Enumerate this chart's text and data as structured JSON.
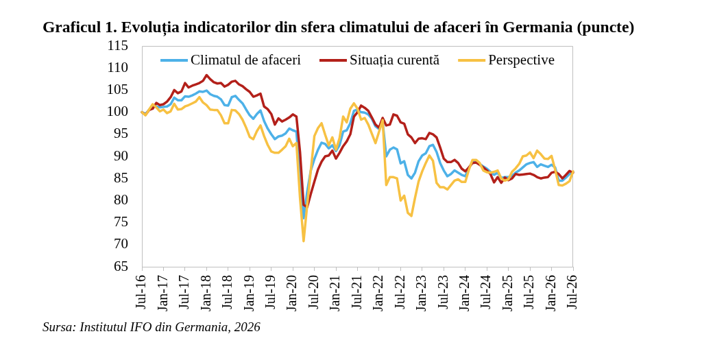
{
  "chart_data": {
    "type": "line",
    "title": "Graficul 1. Evoluția indicatorilor din sfera climatului de afaceri în Germania (puncte)",
    "annotations": [
      "Sursa: Institutul IFO din Germania, 2026"
    ],
    "categories": [
      "Jul-16",
      null,
      null,
      null,
      null,
      null,
      "Jan-17",
      null,
      null,
      null,
      null,
      null,
      "Jul-17",
      null,
      null,
      null,
      null,
      null,
      "Jan-18",
      null,
      null,
      null,
      null,
      null,
      "Jul-18",
      null,
      null,
      null,
      null,
      null,
      "Jan-19",
      null,
      null,
      null,
      null,
      null,
      "Jul-19",
      null,
      null,
      null,
      null,
      null,
      "Jan-20",
      null,
      null,
      null,
      null,
      null,
      "Jul-20",
      null,
      null,
      null,
      null,
      null,
      "Jan-21",
      null,
      null,
      null,
      null,
      null,
      "Jul-21",
      null,
      null,
      null,
      null,
      null,
      "Jan-22",
      null,
      null,
      null,
      null,
      null,
      "Jul-22",
      null,
      null,
      null,
      null,
      null,
      "Jan-23",
      null,
      null,
      null,
      null,
      null,
      "Jul-23",
      null,
      null,
      null,
      null,
      null,
      "Jan-24",
      null,
      null,
      null,
      null,
      null,
      "Jul-24",
      null,
      null,
      null,
      null,
      null,
      "Jan-25",
      null,
      null,
      null,
      null,
      null,
      "Jul-25",
      null,
      null,
      null,
      null,
      null,
      "Jan-26",
      null,
      null,
      null,
      null,
      null,
      "Jul-26"
    ],
    "series": [
      {
        "name": "Climatul de afaceri",
        "color": "#4db1e8",
        "values": [
          100,
          99.6,
          100.5,
          101.2,
          101.3,
          101.1,
          101.2,
          101.3,
          101.8,
          103.3,
          102.7,
          102.7,
          103.6,
          103.5,
          103.8,
          104.2,
          104.7,
          104.6,
          104.9,
          104.1,
          103.7,
          103.5,
          102.9,
          101.6,
          101.5,
          103.4,
          103.7,
          102.8,
          102.0,
          100.6,
          99.3,
          98.5,
          99.6,
          100.4,
          98.0,
          96.3,
          95.0,
          93.9,
          94.5,
          94.7,
          95.2,
          96.3,
          95.9,
          95.6,
          85.0,
          76.0,
          82.0,
          86.8,
          89.4,
          91.5,
          93.1,
          92.8,
          91.8,
          92.5,
          91.2,
          92.5,
          95.6,
          95.9,
          97.5,
          100.3,
          100.6,
          100.0,
          99.9,
          99.5,
          98.5,
          96.8,
          96.2,
          97.7,
          90.0,
          91.5,
          92.0,
          91.6,
          88.4,
          88.9,
          85.8,
          85.0,
          86.3,
          88.9,
          90.2,
          90.7,
          92.3,
          92.6,
          91.0,
          88.5,
          86.8,
          85.5,
          86.0,
          86.8,
          86.3,
          85.8,
          85.5,
          87.4,
          88.7,
          88.9,
          88.3,
          87.7,
          87.2,
          86.5,
          85.8,
          86.3,
          85.1,
          85.3,
          85.3,
          85.6,
          86.3,
          86.8,
          87.5,
          88.2,
          88.5,
          88.7,
          87.6,
          88.2,
          87.9,
          87.6,
          88.1,
          87.5,
          84.5,
          84.5,
          85.2,
          86.0,
          86.5
        ]
      },
      {
        "name": "Situația curentă",
        "color": "#b3201a",
        "values": [
          100,
          99.4,
          100.5,
          100.8,
          102.1,
          101.6,
          101.8,
          102.4,
          103.4,
          105.0,
          104.3,
          104.7,
          106.6,
          105.6,
          106.0,
          106.3,
          106.6,
          107.1,
          108.4,
          107.5,
          106.8,
          106.5,
          106.6,
          105.8,
          106.2,
          106.9,
          107.1,
          106.3,
          105.9,
          105.2,
          104.6,
          103.5,
          103.8,
          104.2,
          101.3,
          100.7,
          99.6,
          97.2,
          98.6,
          97.9,
          98.3,
          98.8,
          99.5,
          99.0,
          91.0,
          79.0,
          78.5,
          81.5,
          84.3,
          87.0,
          88.8,
          90.0,
          90.2,
          91.3,
          89.5,
          90.8,
          92.3,
          93.4,
          95.0,
          99.0,
          100.0,
          101.5,
          101.0,
          100.3,
          98.8,
          97.2,
          96.5,
          98.7,
          97.0,
          97.2,
          99.5,
          99.2,
          97.7,
          97.4,
          95.0,
          94.3,
          93.0,
          94.0,
          94.1,
          93.9,
          95.3,
          95.0,
          94.3,
          92.0,
          89.5,
          88.7,
          88.7,
          89.2,
          88.5,
          87.2,
          86.6,
          87.5,
          88.5,
          88.6,
          88.1,
          87.5,
          86.8,
          86.0,
          84.1,
          85.3,
          84.0,
          85.2,
          84.6,
          85.0,
          86.0,
          85.8,
          85.9,
          86.0,
          86.1,
          85.8,
          85.3,
          85.0,
          85.2,
          85.3,
          86.3,
          86.5,
          86.0,
          85.0,
          85.8,
          86.7,
          86.3
        ]
      },
      {
        "name": "Perspective",
        "color": "#f7c143",
        "values": [
          100,
          99.3,
          100.6,
          101.8,
          101.1,
          100.2,
          100.6,
          99.8,
          100.2,
          101.9,
          100.6,
          100.7,
          101.3,
          101.6,
          102.0,
          102.4,
          103.4,
          102.2,
          101.6,
          100.6,
          100.5,
          100.5,
          99.3,
          97.5,
          97.5,
          100.5,
          100.4,
          99.6,
          98.3,
          96.5,
          94.4,
          93.9,
          95.7,
          97.0,
          94.6,
          92.6,
          91.1,
          90.8,
          90.8,
          91.5,
          92.3,
          94.0,
          92.3,
          93.0,
          80.6,
          70.8,
          79.0,
          86.8,
          94.6,
          96.4,
          97.5,
          94.9,
          92.5,
          94.3,
          91.5,
          94.1,
          99.0,
          97.7,
          100.8,
          102.0,
          100.8,
          98.3,
          98.7,
          97.2,
          95.1,
          93.0,
          95.6,
          98.2,
          83.5,
          85.3,
          85.3,
          85.0,
          80.0,
          81.1,
          77.2,
          76.5,
          80.6,
          84.3,
          86.6,
          88.5,
          90.2,
          89.0,
          84.0,
          83.0,
          83.0,
          82.5,
          83.5,
          84.5,
          84.8,
          84.2,
          84.2,
          87.0,
          89.2,
          89.2,
          88.5,
          86.8,
          86.4,
          86.3,
          86.5,
          86.8,
          85.0,
          84.5,
          84.8,
          86.5,
          87.3,
          88.3,
          90.0,
          90.2,
          90.9,
          89.6,
          91.3,
          90.5,
          89.5,
          89.4,
          90.1,
          87.0,
          83.5,
          83.4,
          83.8,
          84.4,
          86.6
        ]
      }
    ],
    "ylim": [
      65,
      115
    ],
    "yticks": [
      65,
      70,
      75,
      80,
      85,
      90,
      95,
      100,
      105,
      110,
      115
    ],
    "grid": false,
    "legend": "top",
    "marker": "none",
    "line_style": "solid"
  }
}
